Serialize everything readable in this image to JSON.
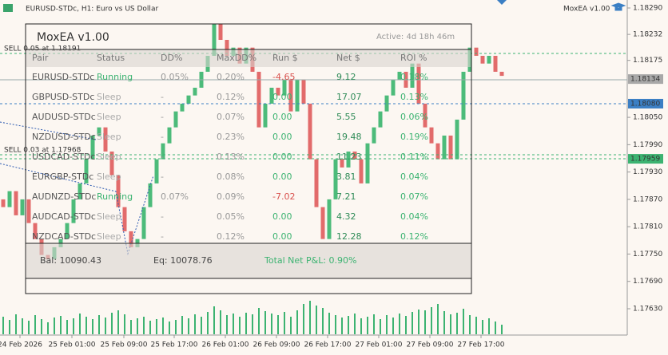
{
  "window": {
    "title": "EURUSD-STDc, H1:  Euro vs US Dollar",
    "ea_label": "MoxEA v1.00"
  },
  "chart": {
    "price_axis": [
      "1.18290",
      "1.18232",
      "1.18175",
      "1.18050",
      "1.17990",
      "1.17930",
      "1.17870",
      "1.17810",
      "1.17750",
      "1.17690",
      "1.17630"
    ],
    "price_tags": [
      "1.18134",
      "1.18080",
      "1.17959"
    ],
    "time_axis": [
      "24 Feb 2026",
      "25 Feb 01:00",
      "25 Feb 09:00",
      "25 Feb 17:00",
      "26 Feb 01:00",
      "26 Feb 09:00",
      "26 Feb 17:00",
      "27 Feb 01:00",
      "27 Feb 09:00",
      "27 Feb 17:00"
    ],
    "orders": [
      "SELL 0.05 at 1.18191",
      "SELL 0.03 at 1.17968"
    ],
    "open": [
      1.1787,
      1.17853,
      1.17888,
      1.17835,
      1.1787,
      1.17818,
      1.17783,
      1.17748,
      1.17739,
      1.17765,
      1.17783,
      1.17818,
      1.1787,
      1.17905,
      1.17958,
      1.1801,
      1.18028,
      1.17975,
      1.17923,
      1.17853,
      1.178,
      1.17765,
      1.17783,
      1.17853,
      1.17905,
      1.17958,
      1.17993,
      1.18028,
      1.18063,
      1.1808,
      1.18098,
      1.18115,
      1.1815,
      1.18185,
      1.18255,
      1.1822,
      1.18185,
      1.18203,
      1.18168,
      1.18203,
      1.1815,
      1.18028,
      1.1808,
      1.18115,
      1.18098,
      1.18133,
      1.18063,
      1.18133,
      1.1808,
      1.17958,
      1.17853,
      1.17783,
      1.1787,
      1.17958,
      1.1794,
      1.17975,
      1.17958,
      1.17905,
      1.17993,
      1.18028,
      1.18063,
      1.18098,
      1.18133,
      1.1815,
      1.18115,
      1.18168,
      1.1808,
      1.18028,
      1.17993,
      1.17958,
      1.1801,
      1.17958,
      1.18045,
      1.1815,
      1.18203,
      1.18185,
      1.18168,
      1.18185,
      1.1815
    ],
    "close": [
      1.17853,
      1.17888,
      1.17835,
      1.1787,
      1.17818,
      1.17783,
      1.17748,
      1.17739,
      1.17765,
      1.17783,
      1.17818,
      1.1787,
      1.17905,
      1.17958,
      1.1801,
      1.18028,
      1.17975,
      1.17923,
      1.17853,
      1.178,
      1.17765,
      1.17783,
      1.17853,
      1.17905,
      1.17958,
      1.17993,
      1.18028,
      1.18063,
      1.1808,
      1.18098,
      1.18115,
      1.1815,
      1.18185,
      1.18255,
      1.1822,
      1.18185,
      1.18203,
      1.18168,
      1.18203,
      1.1815,
      1.18028,
      1.1808,
      1.18115,
      1.18098,
      1.18133,
      1.18063,
      1.18133,
      1.1808,
      1.17958,
      1.17853,
      1.17783,
      1.1787,
      1.17958,
      1.1794,
      1.17975,
      1.17958,
      1.17905,
      1.17993,
      1.18028,
      1.18063,
      1.18098,
      1.18133,
      1.1815,
      1.18115,
      1.18168,
      1.1808,
      1.18028,
      1.17993,
      1.17958,
      1.1801,
      1.17958,
      1.18045,
      1.1815,
      1.18203,
      1.18185,
      1.18168,
      1.18185,
      1.1815,
      1.18141
    ],
    "volume": [
      22,
      18,
      25,
      20,
      17,
      24,
      19,
      15,
      21,
      23,
      18,
      20,
      26,
      22,
      19,
      24,
      21,
      27,
      30,
      25,
      18,
      20,
      22,
      17,
      19,
      21,
      16,
      18,
      23,
      20,
      25,
      22,
      28,
      35,
      30,
      24,
      26,
      22,
      27,
      25,
      33,
      29,
      26,
      24,
      28,
      22,
      30,
      38,
      42,
      36,
      33,
      27,
      24,
      21,
      23,
      26,
      20,
      22,
      25,
      19,
      24,
      21,
      26,
      23,
      28,
      31,
      30,
      34,
      38,
      29,
      25,
      27,
      32,
      24,
      22,
      18,
      20,
      16,
      12
    ]
  },
  "panel": {
    "title": "MoxEA v1.00",
    "active": "Active: 4d 18h 46m",
    "columns": [
      "Pair",
      "Status",
      "DD%",
      "MaxDD%",
      "Run $",
      "Net $",
      "ROI %"
    ],
    "rows": [
      [
        "EURUSD-STDc",
        "Running",
        "0.05%",
        "0.20%",
        "-4.65",
        "9.12",
        "0.18%"
      ],
      [
        "GBPUSD-STDc",
        "Sleep",
        "-",
        "0.12%",
        "0.00",
        "17.07",
        "0.13%"
      ],
      [
        "AUDUSD-STDc",
        "Sleep",
        "-",
        "0.07%",
        "0.00",
        "5.55",
        "0.06%"
      ],
      [
        "NZDUSD-STDc",
        "Sleep",
        "-",
        "0.23%",
        "0.00",
        "19.48",
        "0.19%"
      ],
      [
        "USDCAD-STDc",
        "Sleep",
        "-",
        "0.13%",
        "0.00",
        "11.23",
        "0.11%"
      ],
      [
        "EURGBP-STDc",
        "Sleep",
        "-",
        "0.08%",
        "0.00",
        "3.81",
        "0.04%"
      ],
      [
        "AUDNZD-STDc",
        "Running",
        "0.07%",
        "0.09%",
        "-7.02",
        "7.21",
        "0.07%"
      ],
      [
        "AUDCAD-STDc",
        "Sleep",
        "-",
        "0.05%",
        "0.00",
        "4.32",
        "0.04%"
      ],
      [
        "NZDCAD-STDc",
        "Sleep",
        "-",
        "0.12%",
        "0.00",
        "12.28",
        "0.12%"
      ]
    ],
    "footer": {
      "balance": "Bal: 10090.43",
      "equity": "Eq: 10078.76",
      "pnl": "Total Net P&L: 0.90%"
    }
  }
}
